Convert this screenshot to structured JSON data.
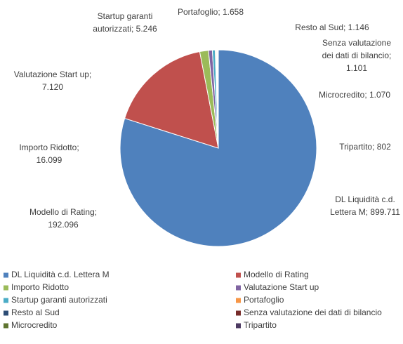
{
  "chart_data": {
    "type": "pie",
    "categories": [
      "DL Liquidità c.d. Lettera M",
      "Modello di Rating",
      "Importo Ridotto",
      "Valutazione Start up",
      "Startup garanti autorizzati",
      "Portafoglio",
      "Resto al Sud",
      "Senza valutazione dei dati di bilancio",
      "Microcredito",
      "Tripartito"
    ],
    "values": [
      899711,
      192096,
      16099,
      7120,
      5246,
      1658,
      1146,
      1101,
      1070,
      802
    ],
    "value_labels": [
      [
        "DL Liquidità c.d.",
        "Lettera M; 899.711"
      ],
      [
        "Modello di Rating;",
        "192.096"
      ],
      [
        "Importo Ridotto;",
        "16.099"
      ],
      [
        "Valutazione Start up;",
        "7.120"
      ],
      [
        "Startup garanti",
        "autorizzati; 5.246"
      ],
      [
        "Portafoglio; 1.658"
      ],
      [
        "Resto al Sud; 1.146"
      ],
      [
        "Senza valutazione",
        "dei dati di bilancio;",
        "1.101"
      ],
      [
        "Microcredito; 1.070"
      ],
      [
        "Tripartito; 802"
      ]
    ],
    "colors": [
      "#4f81bd",
      "#c0504d",
      "#9bbb59",
      "#8064a2",
      "#4bacc6",
      "#f79646",
      "#2c4d75",
      "#772c2a",
      "#5f7530",
      "#4d3b62"
    ],
    "legend": "bottom"
  }
}
